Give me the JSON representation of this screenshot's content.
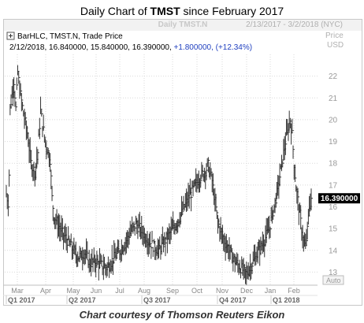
{
  "header": {
    "title_prefix": "Daily Chart of ",
    "title_symbol": "TMST",
    "title_suffix": " since February 2017"
  },
  "window": {
    "symbol": "Daily TMST.N",
    "date_range": "2/13/2017 - 3/2/2018 (NYC)",
    "price_label": "Price",
    "currency": "USD",
    "auto_label": "Auto"
  },
  "legend": {
    "study": "BarHLC, TMST.N, Trade Price",
    "values": "2/12/2018, 16.840000, 15.840000, 16.390000,",
    "change": "+1.800000, (+12.34%)"
  },
  "last_price_label": "16.390000",
  "footer": {
    "credit": "Chart courtesy of Thomson Reuters Eikon"
  },
  "colors": {
    "bars": "#333333",
    "change": "#1f3fbf",
    "grid": "#d9d9d9",
    "price_tag": "#000000"
  },
  "chart_data": {
    "type": "bar",
    "bar_style": "HLC",
    "ylim": [
      12.4,
      23.0
    ],
    "y_ticks": [
      13,
      14,
      15,
      16,
      17,
      18,
      19,
      20,
      21,
      22
    ],
    "x_months": [
      "Mar",
      "Apr",
      "May",
      "Jun",
      "Jul",
      "Aug",
      "Sep",
      "Oct",
      "Nov",
      "Dec",
      "Jan",
      "Feb"
    ],
    "x_quarters": [
      "Q1 2017",
      "Q2 2017",
      "Q3 2017",
      "Q4 2017",
      "Q1 2018"
    ],
    "last_price": 16.39,
    "path": [
      [
        0,
        16.6
      ],
      [
        2,
        16.2
      ],
      [
        3,
        17.5
      ],
      [
        4,
        20.5
      ],
      [
        8,
        21.8
      ],
      [
        10,
        20.5
      ],
      [
        12,
        22.2
      ],
      [
        14,
        21.4
      ],
      [
        18,
        20.3
      ],
      [
        22,
        19.4
      ],
      [
        26,
        18.0
      ],
      [
        30,
        17.6
      ],
      [
        33,
        18.5
      ],
      [
        36,
        20.4
      ],
      [
        40,
        19.2
      ],
      [
        44,
        18.5
      ],
      [
        46,
        18.2
      ],
      [
        48,
        16.4
      ],
      [
        50,
        15.6
      ],
      [
        55,
        15.1
      ],
      [
        60,
        14.7
      ],
      [
        65,
        14.4
      ],
      [
        70,
        14.0
      ],
      [
        76,
        13.7
      ],
      [
        82,
        13.9
      ],
      [
        88,
        13.4
      ],
      [
        94,
        13.5
      ],
      [
        100,
        13.3
      ],
      [
        106,
        13.2
      ],
      [
        112,
        13.6
      ],
      [
        118,
        13.9
      ],
      [
        124,
        14.3
      ],
      [
        130,
        14.8
      ],
      [
        136,
        15.2
      ],
      [
        142,
        14.9
      ],
      [
        148,
        14.5
      ],
      [
        154,
        14.2
      ],
      [
        160,
        14.0
      ],
      [
        166,
        14.4
      ],
      [
        172,
        14.8
      ],
      [
        178,
        15.2
      ],
      [
        184,
        15.7
      ],
      [
        190,
        16.3
      ],
      [
        196,
        16.8
      ],
      [
        202,
        17.3
      ],
      [
        208,
        17.6
      ],
      [
        212,
        17.9
      ],
      [
        216,
        17.2
      ],
      [
        219,
        16.2
      ],
      [
        222,
        15.3
      ],
      [
        228,
        14.5
      ],
      [
        234,
        14.0
      ],
      [
        240,
        13.5
      ],
      [
        246,
        13.2
      ],
      [
        252,
        12.9
      ],
      [
        258,
        13.4
      ],
      [
        264,
        13.9
      ],
      [
        270,
        14.4
      ],
      [
        276,
        15.0
      ],
      [
        280,
        15.8
      ],
      [
        284,
        16.6
      ],
      [
        287,
        17.4
      ],
      [
        290,
        18.2
      ],
      [
        293,
        19.0
      ],
      [
        296,
        19.6
      ],
      [
        298,
        20.0
      ],
      [
        300,
        19.3
      ],
      [
        302,
        18.0
      ],
      [
        304,
        16.9
      ],
      [
        306,
        16.3
      ],
      [
        308,
        15.6
      ],
      [
        310,
        15.0
      ],
      [
        312,
        14.4
      ],
      [
        314,
        14.1
      ],
      [
        316,
        14.9
      ],
      [
        318,
        16.0
      ],
      [
        320,
        16.4
      ]
    ]
  }
}
